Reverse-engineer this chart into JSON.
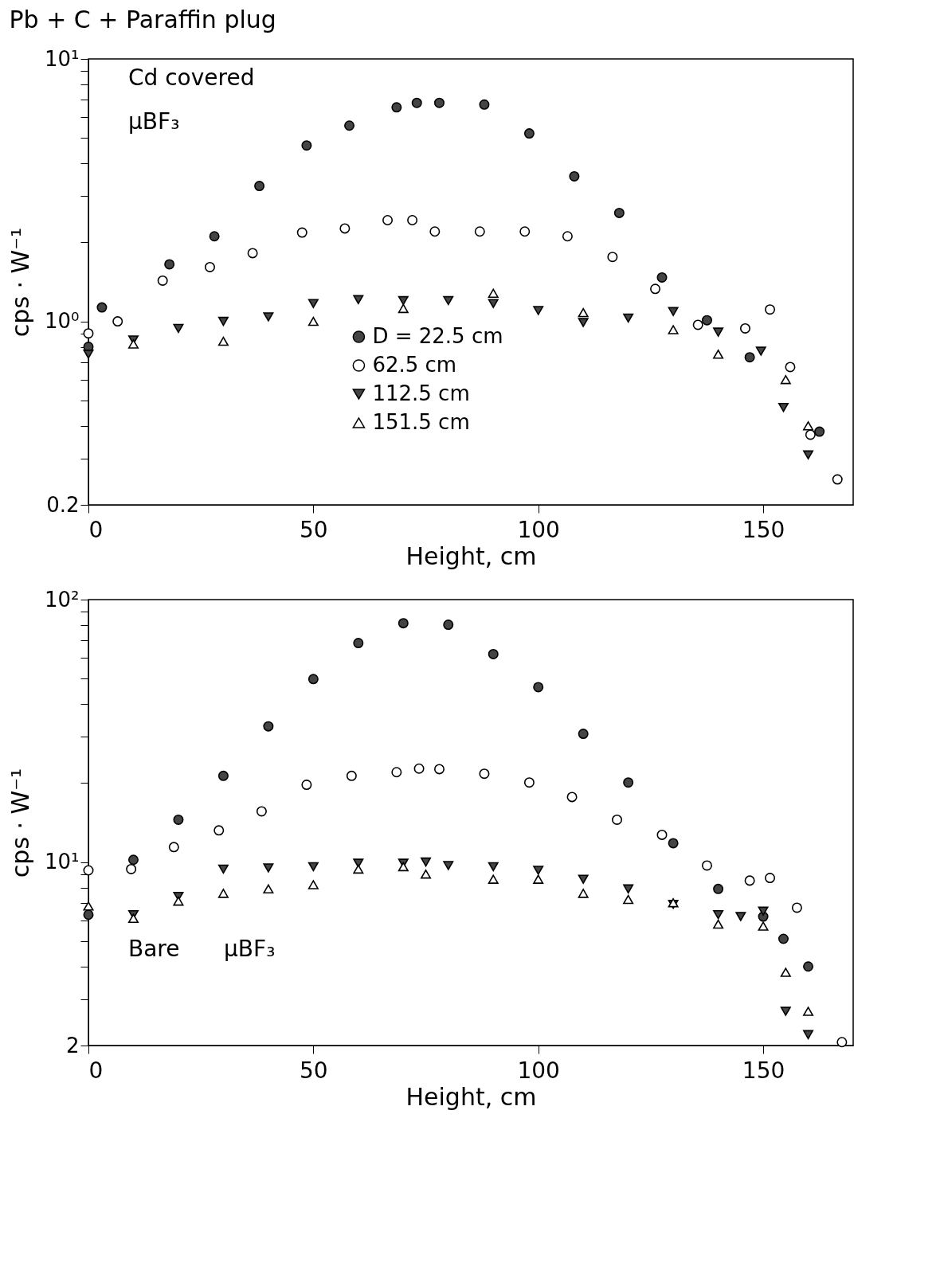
{
  "chart_data": [
    {
      "type": "scatter",
      "title": "Pb + C + Paraffin  plug",
      "xlabel": "Height, cm",
      "ylabel": "cps · W⁻¹",
      "annotations": [
        "Cd  covered",
        "μBF₃"
      ],
      "log": "y",
      "legend": "bottom",
      "xlim": [
        0,
        170
      ],
      "xticks": [
        0,
        50,
        100,
        150
      ],
      "ylim": [
        0.2,
        10
      ],
      "yticks": [
        {
          "value": 0.2,
          "label": "0.2"
        },
        {
          "value": 0.3,
          "label": null
        },
        {
          "value": 0.4,
          "label": null
        },
        {
          "value": 0.5,
          "label": null
        },
        {
          "value": 0.6,
          "label": null
        },
        {
          "value": 0.7,
          "label": null
        },
        {
          "value": 0.8,
          "label": null
        },
        {
          "value": 0.9,
          "label": null
        },
        {
          "value": 1,
          "label": "10⁰"
        },
        {
          "value": 2,
          "label": null
        },
        {
          "value": 3,
          "label": null
        },
        {
          "value": 4,
          "label": null
        },
        {
          "value": 5,
          "label": null
        },
        {
          "value": 6,
          "label": null
        },
        {
          "value": 7,
          "label": null
        },
        {
          "value": 8,
          "label": null
        },
        {
          "value": 9,
          "label": null
        },
        {
          "value": 10,
          "label": "10¹"
        }
      ],
      "series": [
        {
          "name": "D = 22.5 cm",
          "color": "#444444",
          "marker": "circle",
          "x": [
            0,
            3,
            18,
            28,
            38,
            48.5,
            58,
            68.5,
            73,
            78,
            88,
            98,
            108,
            118,
            127.5,
            137.5,
            147,
            162.5
          ],
          "values": [
            0.8,
            1.13,
            1.65,
            2.11,
            3.28,
            4.68,
            5.57,
            6.54,
            6.8,
            6.8,
            6.7,
            5.2,
            3.57,
            2.59,
            1.47,
            1.01,
            0.73,
            0.38
          ]
        },
        {
          "name": "62.5 cm",
          "color": "#ffffff",
          "marker": "circle",
          "x": [
            0,
            6.5,
            16.5,
            27,
            36.5,
            47.5,
            57,
            66.5,
            72,
            77,
            87,
            97,
            106.5,
            116.5,
            126,
            135.5,
            146,
            151.5,
            156,
            160.5,
            166.5
          ],
          "values": [
            0.9,
            1.0,
            1.43,
            1.61,
            1.82,
            2.18,
            2.26,
            2.43,
            2.43,
            2.2,
            2.2,
            2.2,
            2.11,
            1.76,
            1.33,
            0.97,
            0.94,
            1.11,
            0.67,
            0.37,
            0.25
          ]
        },
        {
          "name": "112.5 cm",
          "color": "#444444",
          "marker": "triangle-down",
          "x": [
            0,
            10,
            20,
            30,
            40,
            50,
            60,
            70,
            80,
            90,
            100,
            110,
            120,
            130,
            140,
            149.5,
            154.5,
            160
          ],
          "values": [
            0.75,
            0.85,
            0.94,
            1.0,
            1.04,
            1.17,
            1.21,
            1.2,
            1.2,
            1.17,
            1.1,
            0.99,
            1.03,
            1.09,
            0.91,
            0.77,
            0.47,
            0.31
          ]
        },
        {
          "name": "151.5 cm",
          "color": "#ffffff",
          "marker": "triangle",
          "x": [
            10,
            30,
            50,
            70,
            90,
            110,
            130,
            140,
            155,
            160
          ],
          "values": [
            0.82,
            0.84,
            1.0,
            1.12,
            1.28,
            1.08,
            0.93,
            0.75,
            0.6,
            0.4
          ]
        }
      ]
    },
    {
      "type": "scatter",
      "xlabel": "Height, cm",
      "ylabel": "cps · W⁻¹",
      "annotations": [
        "Bare",
        "μBF₃"
      ],
      "log": "y",
      "xlim": [
        0,
        170
      ],
      "xticks": [
        0,
        50,
        100,
        150
      ],
      "ylim": [
        2,
        100
      ],
      "yticks": [
        {
          "value": 2,
          "label": "2"
        },
        {
          "value": 3,
          "label": null
        },
        {
          "value": 4,
          "label": null
        },
        {
          "value": 5,
          "label": null
        },
        {
          "value": 6,
          "label": null
        },
        {
          "value": 7,
          "label": null
        },
        {
          "value": 8,
          "label": null
        },
        {
          "value": 9,
          "label": null
        },
        {
          "value": 10,
          "label": "10¹"
        },
        {
          "value": 20,
          "label": null
        },
        {
          "value": 30,
          "label": null
        },
        {
          "value": 40,
          "label": null
        },
        {
          "value": 50,
          "label": null
        },
        {
          "value": 60,
          "label": null
        },
        {
          "value": 70,
          "label": null
        },
        {
          "value": 80,
          "label": null
        },
        {
          "value": 90,
          "label": null
        },
        {
          "value": 100,
          "label": "10²"
        }
      ],
      "series": [
        {
          "color": "#444444",
          "marker": "circle",
          "x": [
            0,
            10,
            20,
            30,
            40,
            50,
            60,
            70,
            80,
            90,
            100,
            110,
            120,
            130,
            140,
            150,
            154.5,
            160
          ],
          "values": [
            6.3,
            10.2,
            14.5,
            21.3,
            32.9,
            49.8,
            68.3,
            81.3,
            80.2,
            62,
            46.4,
            30.8,
            20.1,
            11.8,
            7.9,
            6.2,
            5.1,
            4.0
          ]
        },
        {
          "color": "#ffffff",
          "marker": "circle",
          "x": [
            0,
            9.5,
            19,
            29,
            38.5,
            48.5,
            58.5,
            68.5,
            73.5,
            78,
            88,
            98,
            107.5,
            117.5,
            127.5,
            137.5,
            147,
            151.5,
            157.5,
            167.5
          ],
          "values": [
            9.3,
            9.4,
            11.4,
            13.2,
            15.6,
            19.7,
            21.3,
            22.0,
            22.7,
            22.6,
            21.7,
            20.1,
            17.7,
            14.5,
            12.7,
            9.7,
            8.5,
            8.7,
            6.7,
            2.06
          ]
        },
        {
          "color": "#444444",
          "marker": "triangle-down",
          "x": [
            10,
            20,
            30,
            40,
            50,
            60,
            70,
            75,
            80,
            90,
            100,
            110,
            120,
            130,
            140,
            145,
            150,
            155,
            160
          ],
          "values": [
            6.3,
            7.4,
            9.4,
            9.5,
            9.6,
            9.9,
            9.9,
            10,
            9.7,
            9.6,
            9.3,
            8.6,
            7.9,
            6.9,
            6.3,
            6.2,
            6.5,
            2.7,
            2.2
          ]
        },
        {
          "color": "#ffffff",
          "marker": "triangle",
          "x": [
            0,
            10,
            20,
            30,
            40,
            50,
            60,
            70,
            75,
            90,
            100,
            110,
            120,
            130,
            140,
            150,
            155,
            160
          ],
          "values": [
            6.8,
            6.1,
            7.1,
            7.6,
            7.9,
            8.2,
            9.4,
            9.6,
            9.0,
            8.6,
            8.6,
            7.6,
            7.2,
            7.0,
            5.8,
            5.7,
            3.8,
            2.7
          ]
        }
      ]
    }
  ]
}
